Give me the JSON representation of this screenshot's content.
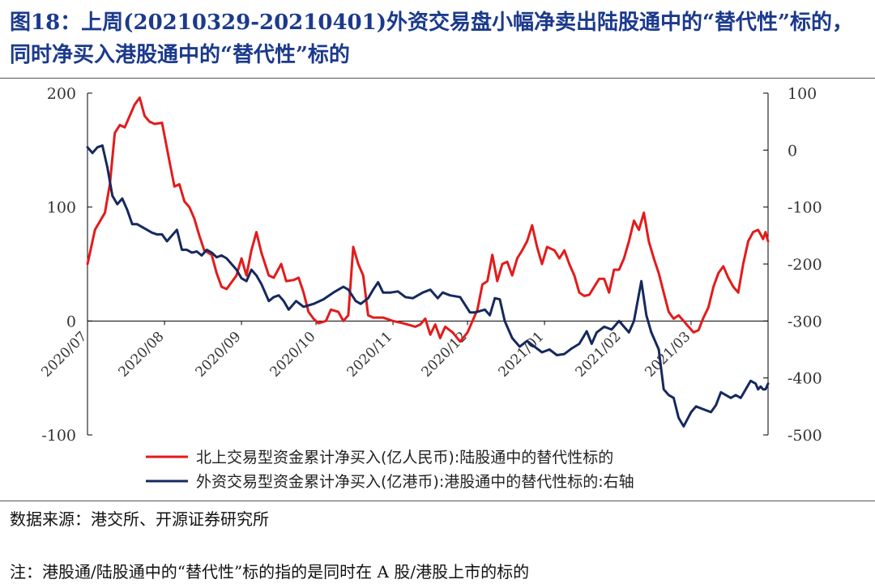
{
  "title": {
    "line1": "图18：上周(20210329-20210401)外资交易盘小幅净卖出陆股通中的“替代性”标的，",
    "line2": "同时净买入港股通中的“替代性”标的"
  },
  "source": "数据来源：港交所、开源证券研究所",
  "note": "注：港股通/陆股通中的“替代性”标的指的是同时在 A 股/港股上市的标的",
  "colors": {
    "red": "#e31b1b",
    "navy": "#16295e",
    "axis": "#000000",
    "title": "#1b3a8c"
  },
  "chart_data": {
    "type": "line",
    "x_axis": {
      "type": "date",
      "range": [
        "2020-07-01",
        "2021-04-01"
      ],
      "ticks": [
        "2020/07",
        "2020/08",
        "2020/09",
        "2020/10",
        "2020/11",
        "2020/12",
        "2021/01",
        "2021/02",
        "2021/03"
      ]
    },
    "y_left": {
      "range": [
        -100,
        200
      ],
      "ticks": [
        "200",
        "100",
        "0",
        "-100"
      ]
    },
    "y_right": {
      "range": [
        -500,
        100
      ],
      "ticks": [
        "100",
        "0",
        "-100",
        "-200",
        "-300",
        "-400",
        "-500"
      ]
    },
    "legend_position": "bottom",
    "series": [
      {
        "name": "北上交易型资金累计净买入(亿人民币):陆股通中的替代性标的",
        "color": "#e31b1b",
        "axis": "left",
        "points": [
          [
            "2020-07-01",
            50
          ],
          [
            "2020-07-04",
            80
          ],
          [
            "2020-07-08",
            95
          ],
          [
            "2020-07-10",
            120
          ],
          [
            "2020-07-12",
            165
          ],
          [
            "2020-07-14",
            172
          ],
          [
            "2020-07-16",
            170
          ],
          [
            "2020-07-18",
            180
          ],
          [
            "2020-07-20",
            190
          ],
          [
            "2020-07-22",
            196
          ],
          [
            "2020-07-24",
            180
          ],
          [
            "2020-07-26",
            175
          ],
          [
            "2020-07-28",
            173
          ],
          [
            "2020-07-31",
            174
          ],
          [
            "2020-08-03",
            140
          ],
          [
            "2020-08-05",
            118
          ],
          [
            "2020-08-07",
            120
          ],
          [
            "2020-08-09",
            105
          ],
          [
            "2020-08-11",
            100
          ],
          [
            "2020-08-13",
            90
          ],
          [
            "2020-08-15",
            75
          ],
          [
            "2020-08-17",
            62
          ],
          [
            "2020-08-20",
            58
          ],
          [
            "2020-08-22",
            42
          ],
          [
            "2020-08-24",
            30
          ],
          [
            "2020-08-26",
            28
          ],
          [
            "2020-08-30",
            40
          ],
          [
            "2020-09-01",
            55
          ],
          [
            "2020-09-03",
            40
          ],
          [
            "2020-09-05",
            62
          ],
          [
            "2020-09-07",
            78
          ],
          [
            "2020-09-09",
            60
          ],
          [
            "2020-09-12",
            40
          ],
          [
            "2020-09-14",
            38
          ],
          [
            "2020-09-17",
            50
          ],
          [
            "2020-09-19",
            35
          ],
          [
            "2020-09-22",
            36
          ],
          [
            "2020-09-24",
            38
          ],
          [
            "2020-09-26",
            25
          ],
          [
            "2020-09-28",
            8
          ],
          [
            "2020-09-30",
            2
          ],
          [
            "2020-10-02",
            -2
          ],
          [
            "2020-10-05",
            0
          ],
          [
            "2020-10-07",
            10
          ],
          [
            "2020-10-10",
            8
          ],
          [
            "2020-10-12",
            0
          ],
          [
            "2020-10-14",
            5
          ],
          [
            "2020-10-16",
            65
          ],
          [
            "2020-10-18",
            50
          ],
          [
            "2020-10-20",
            40
          ],
          [
            "2020-10-22",
            5
          ],
          [
            "2020-10-24",
            3
          ],
          [
            "2020-10-28",
            3
          ],
          [
            "2020-11-01",
            0
          ],
          [
            "2020-11-05",
            -2
          ],
          [
            "2020-11-10",
            -5
          ],
          [
            "2020-11-12",
            -3
          ],
          [
            "2020-11-14",
            2
          ],
          [
            "2020-11-16",
            -12
          ],
          [
            "2020-11-18",
            -3
          ],
          [
            "2020-11-20",
            -15
          ],
          [
            "2020-11-22",
            -5
          ],
          [
            "2020-11-25",
            -10
          ],
          [
            "2020-11-28",
            -18
          ],
          [
            "2020-12-01",
            -10
          ],
          [
            "2020-12-03",
            0
          ],
          [
            "2020-12-05",
            10
          ],
          [
            "2020-12-07",
            32
          ],
          [
            "2020-12-09",
            35
          ],
          [
            "2020-12-11",
            58
          ],
          [
            "2020-12-13",
            35
          ],
          [
            "2020-12-15",
            50
          ],
          [
            "2020-12-17",
            52
          ],
          [
            "2020-12-19",
            40
          ],
          [
            "2020-12-21",
            55
          ],
          [
            "2020-12-23",
            62
          ],
          [
            "2020-12-25",
            70
          ],
          [
            "2020-12-27",
            84
          ],
          [
            "2020-12-29",
            65
          ],
          [
            "2020-12-31",
            50
          ],
          [
            "2021-01-02",
            65
          ],
          [
            "2021-01-05",
            62
          ],
          [
            "2021-01-07",
            55
          ],
          [
            "2021-01-09",
            62
          ],
          [
            "2021-01-11",
            50
          ],
          [
            "2021-01-13",
            40
          ],
          [
            "2021-01-15",
            25
          ],
          [
            "2021-01-17",
            22
          ],
          [
            "2021-01-19",
            23
          ],
          [
            "2021-01-21",
            30
          ],
          [
            "2021-01-23",
            37
          ],
          [
            "2021-01-25",
            37
          ],
          [
            "2021-01-27",
            25
          ],
          [
            "2021-01-29",
            45
          ],
          [
            "2021-01-31",
            45
          ],
          [
            "2021-02-02",
            55
          ],
          [
            "2021-02-04",
            70
          ],
          [
            "2021-02-06",
            88
          ],
          [
            "2021-02-08",
            80
          ],
          [
            "2021-02-10",
            95
          ],
          [
            "2021-02-12",
            70
          ],
          [
            "2021-02-14",
            55
          ],
          [
            "2021-02-16",
            42
          ],
          [
            "2021-02-18",
            25
          ],
          [
            "2021-02-20",
            8
          ],
          [
            "2021-02-22",
            2
          ],
          [
            "2021-02-24",
            5
          ],
          [
            "2021-02-26",
            0
          ],
          [
            "2021-02-28",
            -5
          ],
          [
            "2021-03-02",
            -10
          ],
          [
            "2021-03-04",
            -8
          ],
          [
            "2021-03-06",
            3
          ],
          [
            "2021-03-08",
            12
          ],
          [
            "2021-03-10",
            30
          ],
          [
            "2021-03-12",
            42
          ],
          [
            "2021-03-14",
            48
          ],
          [
            "2021-03-16",
            38
          ],
          [
            "2021-03-18",
            30
          ],
          [
            "2021-03-20",
            25
          ],
          [
            "2021-03-22",
            50
          ],
          [
            "2021-03-24",
            70
          ],
          [
            "2021-03-26",
            78
          ],
          [
            "2021-03-28",
            80
          ],
          [
            "2021-03-29",
            76
          ],
          [
            "2021-03-30",
            72
          ],
          [
            "2021-03-31",
            78
          ],
          [
            "2021-04-01",
            70
          ]
        ]
      },
      {
        "name": "外资交易型资金累计净买入(亿港币):港股通中的替代性标的:右轴",
        "color": "#16295e",
        "axis": "right",
        "points": [
          [
            "2020-07-01",
            5
          ],
          [
            "2020-07-03",
            -5
          ],
          [
            "2020-07-05",
            5
          ],
          [
            "2020-07-07",
            8
          ],
          [
            "2020-07-09",
            -30
          ],
          [
            "2020-07-11",
            -80
          ],
          [
            "2020-07-13",
            -95
          ],
          [
            "2020-07-15",
            -85
          ],
          [
            "2020-07-17",
            -105
          ],
          [
            "2020-07-19",
            -130
          ],
          [
            "2020-07-21",
            -130
          ],
          [
            "2020-07-23",
            -135
          ],
          [
            "2020-07-25",
            -140
          ],
          [
            "2020-07-27",
            -145
          ],
          [
            "2020-07-29",
            -148
          ],
          [
            "2020-07-31",
            -148
          ],
          [
            "2020-08-02",
            -160
          ],
          [
            "2020-08-04",
            -150
          ],
          [
            "2020-08-06",
            -140
          ],
          [
            "2020-08-08",
            -175
          ],
          [
            "2020-08-10",
            -175
          ],
          [
            "2020-08-12",
            -180
          ],
          [
            "2020-08-14",
            -178
          ],
          [
            "2020-08-16",
            -185
          ],
          [
            "2020-08-18",
            -175
          ],
          [
            "2020-08-20",
            -180
          ],
          [
            "2020-08-22",
            -188
          ],
          [
            "2020-08-24",
            -185
          ],
          [
            "2020-08-26",
            -190
          ],
          [
            "2020-08-28",
            -200
          ],
          [
            "2020-08-30",
            -210
          ],
          [
            "2020-09-01",
            -225
          ],
          [
            "2020-09-03",
            -230
          ],
          [
            "2020-09-05",
            -210
          ],
          [
            "2020-09-07",
            -220
          ],
          [
            "2020-09-09",
            -235
          ],
          [
            "2020-09-12",
            -265
          ],
          [
            "2020-09-14",
            -258
          ],
          [
            "2020-09-16",
            -255
          ],
          [
            "2020-09-18",
            -265
          ],
          [
            "2020-09-20",
            -280
          ],
          [
            "2020-09-23",
            -265
          ],
          [
            "2020-09-26",
            -275
          ],
          [
            "2020-09-30",
            -270
          ],
          [
            "2020-10-04",
            -262
          ],
          [
            "2020-10-08",
            -250
          ],
          [
            "2020-10-12",
            -240
          ],
          [
            "2020-10-14",
            -245
          ],
          [
            "2020-10-17",
            -265
          ],
          [
            "2020-10-19",
            -270
          ],
          [
            "2020-10-22",
            -260
          ],
          [
            "2020-10-24",
            -245
          ],
          [
            "2020-10-26",
            -232
          ],
          [
            "2020-10-28",
            -250
          ],
          [
            "2020-10-31",
            -250
          ],
          [
            "2020-11-03",
            -248
          ],
          [
            "2020-11-06",
            -258
          ],
          [
            "2020-11-09",
            -260
          ],
          [
            "2020-11-11",
            -255
          ],
          [
            "2020-11-13",
            -250
          ],
          [
            "2020-11-16",
            -245
          ],
          [
            "2020-11-19",
            -260
          ],
          [
            "2020-11-21",
            -250
          ],
          [
            "2020-11-24",
            -255
          ],
          [
            "2020-11-28",
            -258
          ],
          [
            "2020-12-02",
            -285
          ],
          [
            "2020-12-04",
            -285
          ],
          [
            "2020-12-08",
            -280
          ],
          [
            "2020-12-10",
            -290
          ],
          [
            "2020-12-12",
            -260
          ],
          [
            "2020-12-14",
            -262
          ],
          [
            "2020-12-16",
            -300
          ],
          [
            "2020-12-19",
            -330
          ],
          [
            "2020-12-22",
            -345
          ],
          [
            "2020-12-25",
            -335
          ],
          [
            "2020-12-28",
            -345
          ],
          [
            "2020-12-31",
            -355
          ],
          [
            "2021-01-03",
            -350
          ],
          [
            "2021-01-06",
            -360
          ],
          [
            "2021-01-09",
            -358
          ],
          [
            "2021-01-12",
            -348
          ],
          [
            "2021-01-15",
            -340
          ],
          [
            "2021-01-18",
            -318
          ],
          [
            "2021-01-20",
            -340
          ],
          [
            "2021-01-22",
            -320
          ],
          [
            "2021-01-25",
            -310
          ],
          [
            "2021-01-28",
            -315
          ],
          [
            "2021-01-31",
            -300
          ],
          [
            "2021-02-02",
            -310
          ],
          [
            "2021-02-04",
            -320
          ],
          [
            "2021-02-06",
            -300
          ],
          [
            "2021-02-09",
            -230
          ],
          [
            "2021-02-11",
            -290
          ],
          [
            "2021-02-13",
            -320
          ],
          [
            "2021-02-16",
            -350
          ],
          [
            "2021-02-18",
            -420
          ],
          [
            "2021-02-20",
            -430
          ],
          [
            "2021-02-22",
            -435
          ],
          [
            "2021-02-24",
            -470
          ],
          [
            "2021-02-26",
            -485
          ],
          [
            "2021-03-01",
            -460
          ],
          [
            "2021-03-03",
            -450
          ],
          [
            "2021-03-06",
            -455
          ],
          [
            "2021-03-09",
            -460
          ],
          [
            "2021-03-11",
            -448
          ],
          [
            "2021-03-13",
            -425
          ],
          [
            "2021-03-15",
            -430
          ],
          [
            "2021-03-17",
            -435
          ],
          [
            "2021-03-19",
            -430
          ],
          [
            "2021-03-21",
            -435
          ],
          [
            "2021-03-23",
            -420
          ],
          [
            "2021-03-25",
            -405
          ],
          [
            "2021-03-27",
            -410
          ],
          [
            "2021-03-28",
            -420
          ],
          [
            "2021-03-29",
            -415
          ],
          [
            "2021-03-30",
            -420
          ],
          [
            "2021-03-31",
            -420
          ],
          [
            "2021-04-01",
            -410
          ]
        ]
      }
    ]
  }
}
